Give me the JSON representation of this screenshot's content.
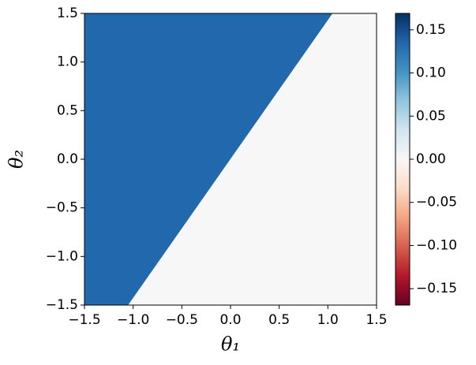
{
  "chart_data": {
    "type": "heatmap",
    "x_label": "θ₁",
    "y_label": "θ₂",
    "xlim": [
      -1.5,
      1.5
    ],
    "ylim": [
      -1.5,
      1.5
    ],
    "xticks": [
      {
        "value": -1.5,
        "label": "−1.5"
      },
      {
        "value": -1.0,
        "label": "−1.0"
      },
      {
        "value": -0.5,
        "label": "−0.5"
      },
      {
        "value": 0,
        "label": "0.0"
      },
      0.5,
      {
        "value": 1.0,
        "label": "1.0"
      },
      1.5
    ],
    "yticks": [
      {
        "value": -1.5,
        "label": "−1.5"
      },
      {
        "value": -1.0,
        "label": "−1.0"
      },
      {
        "value": -0.5,
        "label": "−0.5"
      },
      {
        "value": 0,
        "label": "0.0"
      },
      0.5,
      {
        "value": 1.0,
        "label": "1.0"
      },
      1.5
    ],
    "regions": [
      {
        "value": 0.134,
        "polygon": [
          [
            -1.5,
            -1.5
          ],
          [
            -1.05,
            -1.5
          ],
          [
            1.05,
            1.5
          ],
          [
            -1.5,
            1.5
          ]
        ]
      },
      {
        "value": 0,
        "polygon": [
          [
            -1.05,
            -1.5
          ],
          [
            1.5,
            -1.5
          ],
          [
            1.5,
            1.5
          ],
          [
            1.05,
            1.5
          ]
        ]
      }
    ],
    "colormap": [
      "#67001f",
      "#b2182b",
      "#d6604d",
      "#f4a582",
      "#fddbc7",
      "#f7f7f7",
      "#d1e5f0",
      "#92c5de",
      "#4393c3",
      "#2166ac",
      "#053061"
    ],
    "clim": [
      -0.169,
      0.169
    ],
    "cticks": [
      {
        "value": -0.15,
        "label": "−0.15"
      },
      {
        "value": -0.1,
        "label": "−0.10"
      },
      {
        "value": -0.05,
        "label": "−0.05"
      },
      {
        "value": 0,
        "label": "0.00"
      },
      0.05,
      {
        "value": 0.1,
        "label": "0.10"
      },
      0.15
    ]
  }
}
